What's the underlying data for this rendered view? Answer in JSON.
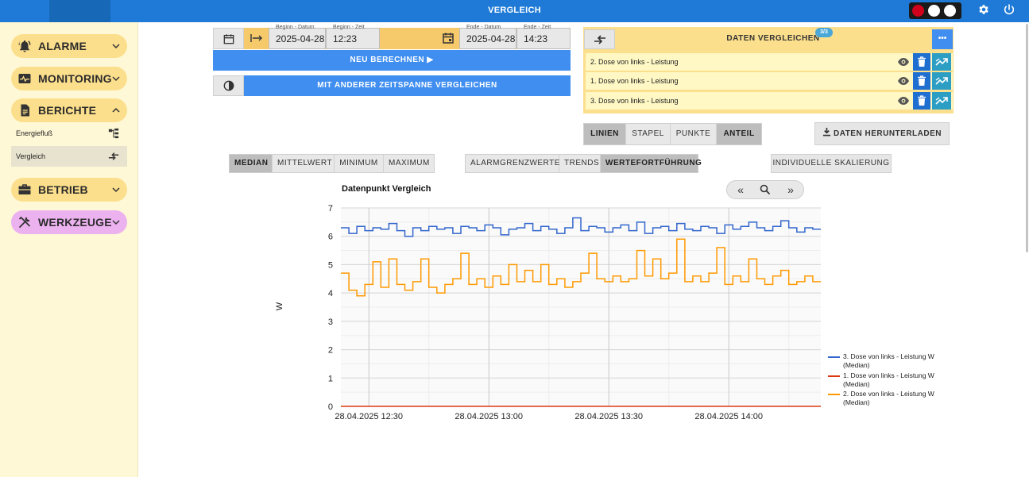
{
  "header": {
    "title": "VERGLEICH",
    "status_colors": [
      "#d0021b",
      "#ffffff",
      "#ffffff"
    ],
    "settings_icon": "gear-icon",
    "power_icon": "power-icon"
  },
  "sidebar": {
    "groups": [
      {
        "label": "ALARME",
        "icon": "bell-icon",
        "color": "#fcdf8c",
        "expanded": false
      },
      {
        "label": "MONITORING",
        "icon": "monitoring-icon",
        "color": "#fcdf8c",
        "expanded": false
      },
      {
        "label": "BERICHTE",
        "icon": "report-icon",
        "color": "#fcdf8c",
        "expanded": true
      },
      {
        "label": "BETRIEB",
        "icon": "briefcase-icon",
        "color": "#fcdf8c",
        "expanded": false
      },
      {
        "label": "WERKZEUGE",
        "icon": "tools-icon",
        "color": "#ecb2f0",
        "expanded": false
      }
    ],
    "sub_items": [
      {
        "label": "Energiefluß",
        "icon": "tree-icon",
        "active": false
      },
      {
        "label": "Vergleich",
        "icon": "compare-arrows-icon",
        "active": true
      }
    ]
  },
  "timerange": {
    "begin_date_label": "Beginn - Datum",
    "begin_date": "2025-04-28",
    "begin_time_label": "Beginn - Zeit",
    "begin_time": "12:23",
    "end_date_label": "Ende - Datum",
    "end_date": "2025-04-28",
    "end_time_label": "Ende - Zeit",
    "end_time": "14:23",
    "recalc_label": "NEU BERECHNEN  ▶",
    "compare_other_label": "MIT ANDERER ZEITSPANNE VERGLEICHEN"
  },
  "compare_panel": {
    "title": "DATEN VERGLEICHEN",
    "badge": "3/3",
    "menu_label": "•••",
    "rows": [
      {
        "label": "2. Dose von links - Leistung"
      },
      {
        "label": "1. Dose von links - Leistung"
      },
      {
        "label": "3. Dose von links - Leistung"
      }
    ]
  },
  "view_modes": {
    "options": [
      "LINIEN",
      "STAPEL",
      "PUNKTE",
      "ANTEIL"
    ],
    "active": [
      "LINIEN",
      "ANTEIL"
    ]
  },
  "download_label": "DATEN HERUNTERLADEN",
  "aggregation": {
    "options": [
      "MEDIAN",
      "MITTELWERT",
      "MINIMUM",
      "MAXIMUM"
    ],
    "active": "MEDIAN"
  },
  "overlays": {
    "options": [
      "ALARMGRENZWERTE",
      "TRENDS",
      "WERTEFORTFÜHRUNG"
    ],
    "active": "WERTEFORTFÜHRUNG"
  },
  "scaling_label": "INDIVIDUELLE SKALIERUNG",
  "chart_nav": {
    "prev": "«",
    "zoom": "⌕",
    "next": "»"
  },
  "chart_data": {
    "type": "line",
    "title": "Datenpunkt Vergleich",
    "ylabel": "W",
    "xlabel": "",
    "ylim": [
      0,
      7
    ],
    "y_ticks": [
      0,
      1,
      2,
      3,
      4,
      5,
      6,
      7
    ],
    "x_tick_labels": [
      "28.04.2025 12:30",
      "28.04.2025 13:00",
      "28.04.2025 13:30",
      "28.04.2025 14:00"
    ],
    "x_range_minutes": [
      12.4,
      14.4
    ],
    "grid": true,
    "legend_position": "right",
    "series": [
      {
        "name": "3. Dose von links - Leistung W (Median)",
        "color": "#3366cc",
        "step": true,
        "x": [
          "12:23",
          "12:25",
          "12:27",
          "12:29",
          "12:31",
          "12:33",
          "12:35",
          "12:37",
          "12:39",
          "12:41",
          "12:43",
          "12:45",
          "12:47",
          "12:49",
          "12:51",
          "12:53",
          "12:55",
          "12:57",
          "12:59",
          "13:01",
          "13:03",
          "13:05",
          "13:07",
          "13:09",
          "13:11",
          "13:13",
          "13:15",
          "13:17",
          "13:19",
          "13:21",
          "13:23",
          "13:25",
          "13:27",
          "13:29",
          "13:31",
          "13:33",
          "13:35",
          "13:37",
          "13:39",
          "13:41",
          "13:43",
          "13:45",
          "13:47",
          "13:49",
          "13:51",
          "13:53",
          "13:55",
          "13:57",
          "13:59",
          "14:01",
          "14:03",
          "14:05",
          "14:07",
          "14:09",
          "14:11",
          "14:13",
          "14:15",
          "14:17",
          "14:19",
          "14:21"
        ],
        "values": [
          6.3,
          6.1,
          6.35,
          6.2,
          6.3,
          6.25,
          6.45,
          6.2,
          6.0,
          6.3,
          6.2,
          6.35,
          6.25,
          6.3,
          6.1,
          6.35,
          6.3,
          6.2,
          6.4,
          6.3,
          6.05,
          6.25,
          6.3,
          6.45,
          6.2,
          6.35,
          6.25,
          6.1,
          6.3,
          6.65,
          6.2,
          6.35,
          6.3,
          6.15,
          6.3,
          6.4,
          6.2,
          6.5,
          6.1,
          6.3,
          6.35,
          6.2,
          6.45,
          6.25,
          6.2,
          6.35,
          6.3,
          6.1,
          6.4,
          6.25,
          6.35,
          6.5,
          6.3,
          6.2,
          6.35,
          6.55,
          6.3,
          6.15,
          6.3,
          6.25
        ]
      },
      {
        "name": "1. Dose von links - Leistung W (Median)",
        "color": "#dc3912",
        "step": true,
        "x": [
          "12:23",
          "14:21"
        ],
        "values": [
          0,
          0
        ]
      },
      {
        "name": "2. Dose von links - Leistung W (Median)",
        "color": "#ff9900",
        "step": true,
        "x": [
          "12:23",
          "12:25",
          "12:27",
          "12:29",
          "12:31",
          "12:33",
          "12:35",
          "12:37",
          "12:39",
          "12:41",
          "12:43",
          "12:45",
          "12:47",
          "12:49",
          "12:51",
          "12:53",
          "12:55",
          "12:57",
          "12:59",
          "13:01",
          "13:03",
          "13:05",
          "13:07",
          "13:09",
          "13:11",
          "13:13",
          "13:15",
          "13:17",
          "13:19",
          "13:21",
          "13:23",
          "13:25",
          "13:27",
          "13:29",
          "13:31",
          "13:33",
          "13:35",
          "13:37",
          "13:39",
          "13:41",
          "13:43",
          "13:45",
          "13:47",
          "13:49",
          "13:51",
          "13:53",
          "13:55",
          "13:57",
          "13:59",
          "14:01",
          "14:03",
          "14:05",
          "14:07",
          "14:09",
          "14:11",
          "14:13",
          "14:15",
          "14:17",
          "14:19",
          "14:21"
        ],
        "values": [
          4.7,
          4.1,
          3.9,
          4.3,
          5.1,
          4.2,
          5.2,
          4.3,
          4.1,
          4.4,
          5.2,
          4.2,
          4.0,
          4.3,
          4.5,
          5.4,
          4.3,
          4.5,
          4.2,
          4.6,
          4.3,
          5.0,
          4.4,
          4.8,
          4.4,
          5.0,
          4.3,
          4.5,
          4.2,
          4.4,
          4.7,
          5.4,
          4.5,
          4.4,
          4.6,
          4.4,
          4.5,
          5.5,
          4.6,
          5.2,
          4.5,
          4.7,
          5.9,
          4.4,
          4.6,
          4.4,
          4.7,
          5.6,
          4.3,
          4.6,
          4.4,
          5.2,
          4.5,
          4.3,
          4.6,
          4.8,
          4.3,
          4.4,
          4.6,
          4.4
        ]
      }
    ]
  }
}
